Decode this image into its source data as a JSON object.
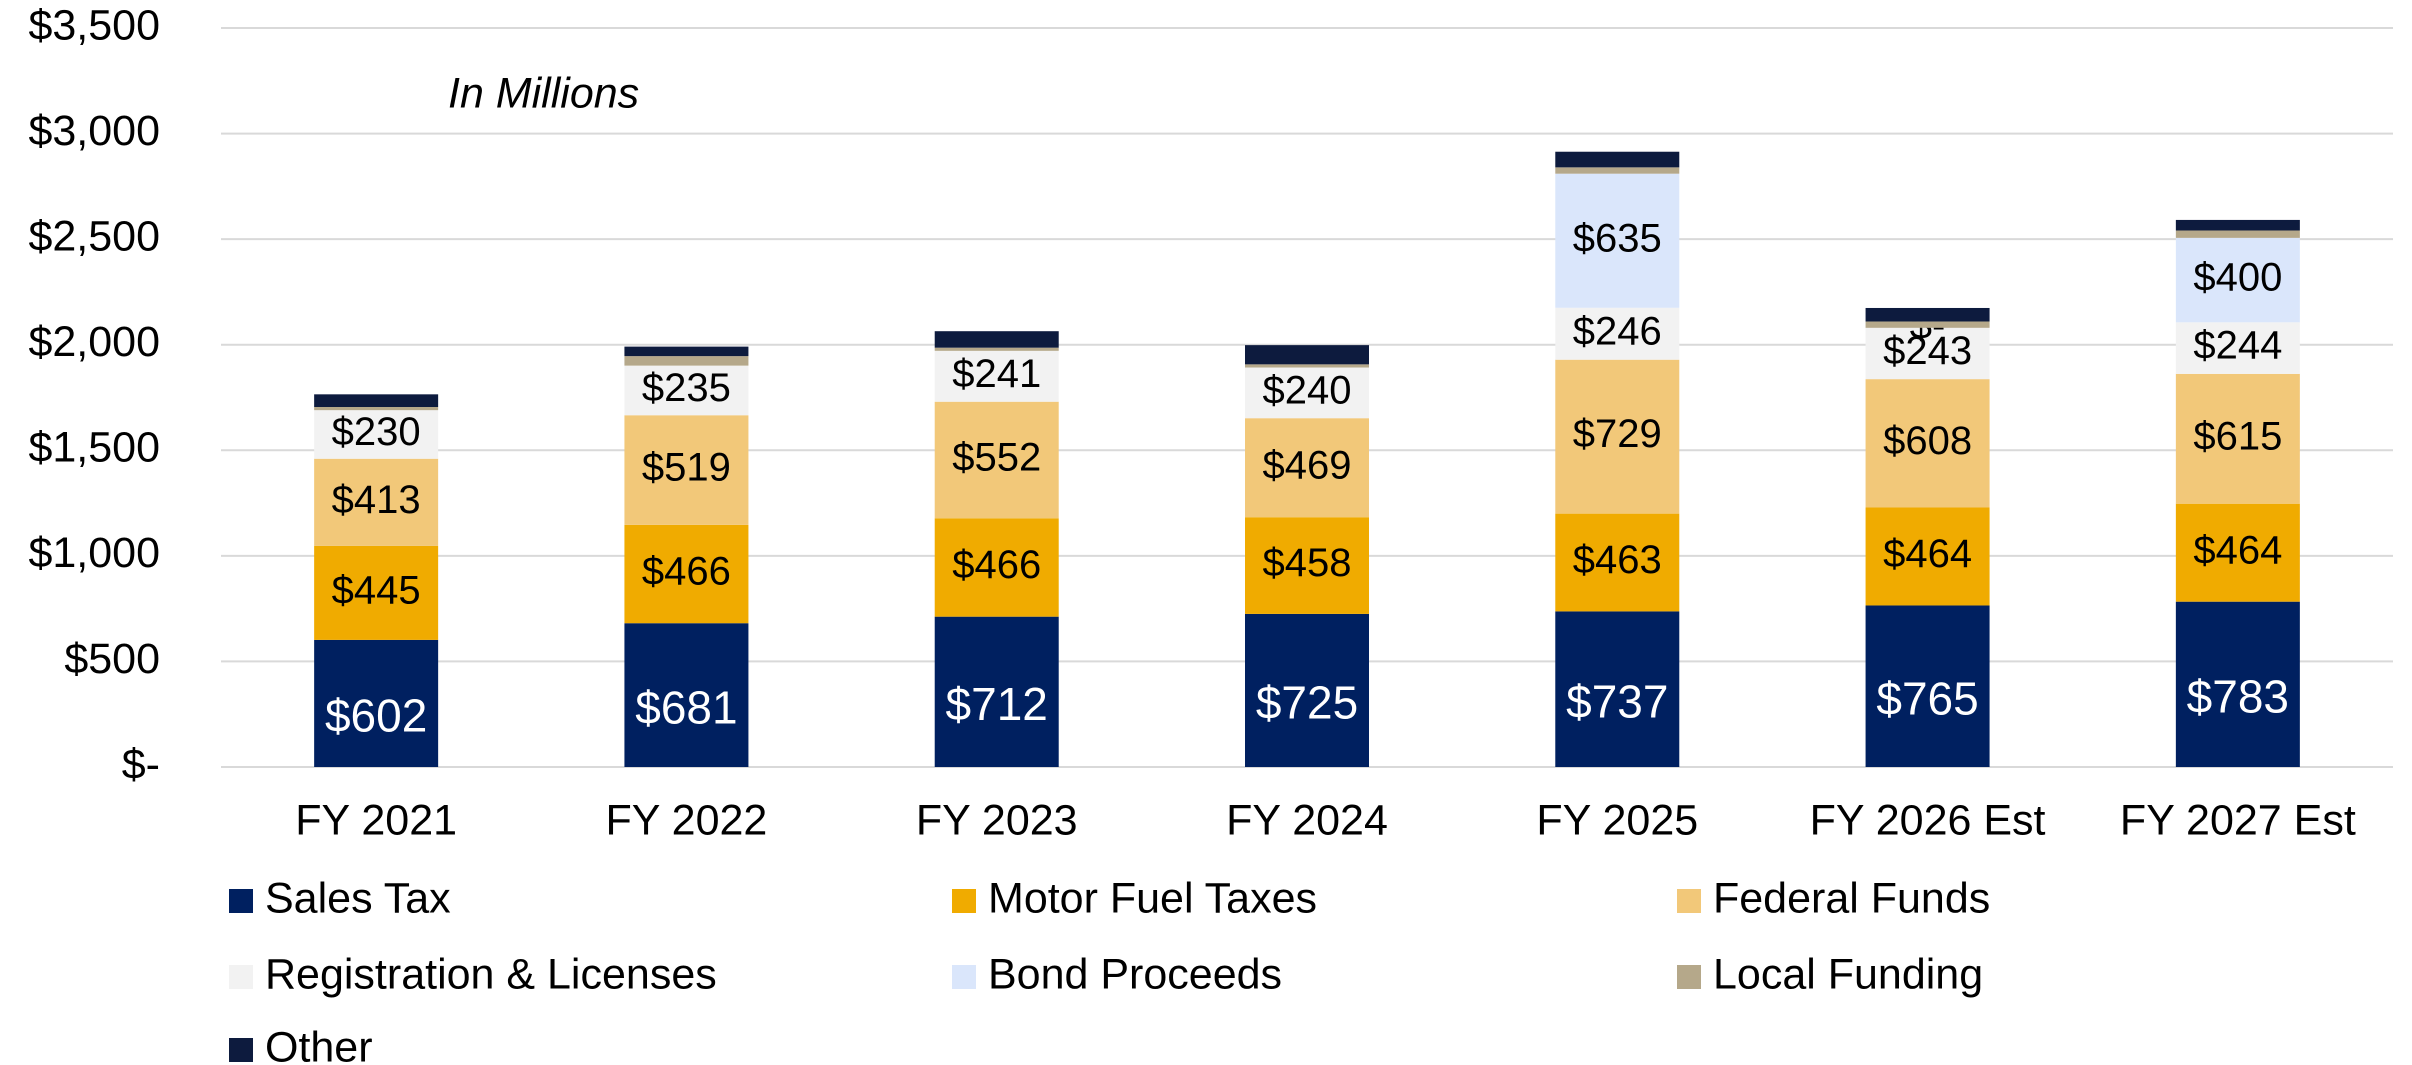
{
  "chart_data": {
    "type": "stacked_bar",
    "annotations": [
      "In Millions"
    ],
    "categories": [
      "FY 2021",
      "FY 2022",
      "FY 2023",
      "FY 2024",
      "FY 2025",
      "FY 2026 Est",
      "FY 2027 Est"
    ],
    "series": [
      {
        "name": "Sales Tax",
        "color": "#002060",
        "values": [
          602,
          681,
          712,
          725,
          737,
          765,
          783
        ],
        "value_labels": [
          "$602",
          "$681",
          "$712",
          "$725",
          "$737",
          "$765",
          "$783"
        ]
      },
      {
        "name": "Motor Fuel Taxes",
        "color": "#f0ab00",
        "values": [
          445,
          466,
          466,
          458,
          463,
          464,
          464
        ],
        "value_labels": [
          "$445",
          "$466",
          "$466",
          "$458",
          "$463",
          "$464",
          "$464"
        ]
      },
      {
        "name": "Federal Funds",
        "color": "#f2c879",
        "values": [
          413,
          519,
          552,
          469,
          729,
          608,
          615
        ],
        "value_labels": [
          "$413",
          "$519",
          "$552",
          "$469",
          "$729",
          "$608",
          "$615"
        ]
      },
      {
        "name": "Registration & Licenses",
        "color": "#f2f2f2",
        "values": [
          230,
          235,
          241,
          240,
          246,
          243,
          244
        ],
        "value_labels": [
          "$230",
          "$235",
          "$241",
          "$240",
          "$246",
          "$243",
          "$244"
        ]
      },
      {
        "name": "Bond Proceeds",
        "color": "#dae6fb",
        "values": [
          0,
          0,
          0,
          0,
          635,
          0,
          400
        ],
        "value_labels": [
          null,
          null,
          null,
          null,
          "$635",
          "$-",
          "$400"
        ]
      },
      {
        "name": "Local Funding",
        "color": "#b5a88a",
        "values": [
          15,
          45,
          15,
          15,
          30,
          30,
          35
        ]
      },
      {
        "name": "Other",
        "color": "#0d1b3e",
        "values": [
          60,
          45,
          78,
          91,
          74,
          64,
          50
        ]
      }
    ],
    "ylim": [
      0,
      3500
    ],
    "yticks": [
      {
        "value": 0,
        "label": "$-"
      },
      {
        "value": 500,
        "label": "$500"
      },
      {
        "value": 1000,
        "label": "$1,000"
      },
      {
        "value": 1500,
        "label": "$1,500"
      },
      {
        "value": 2000,
        "label": "$2,000"
      },
      {
        "value": 2500,
        "label": "$2,500"
      },
      {
        "value": 3000,
        "label": "$3,000"
      },
      {
        "value": 3500,
        "label": "$3,500"
      }
    ],
    "grid": true,
    "legend": "bottom"
  }
}
